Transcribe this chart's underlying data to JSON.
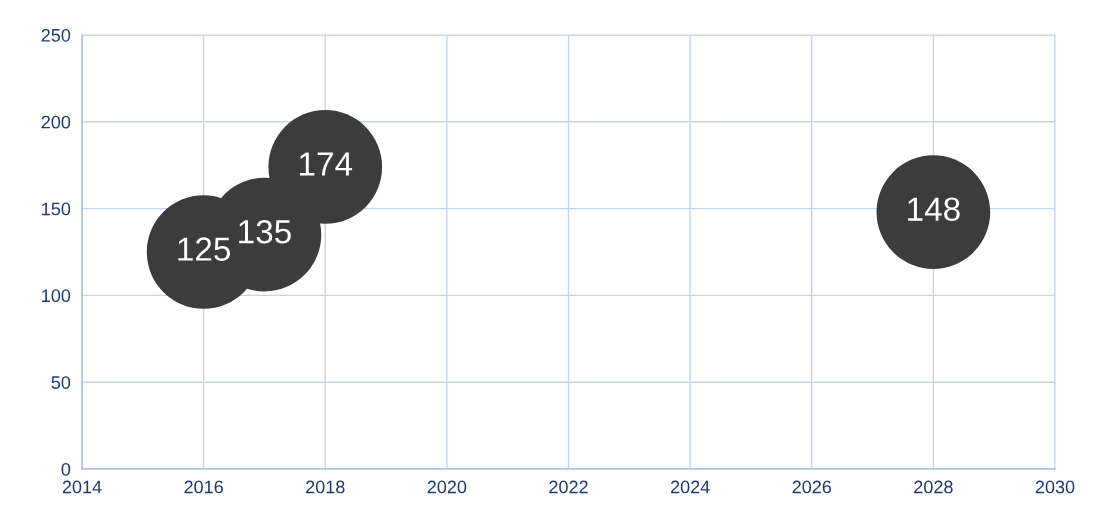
{
  "chart_data": {
    "type": "bubble",
    "x": [
      2016,
      2017,
      2018,
      2028
    ],
    "values": [
      125,
      135,
      174,
      148
    ],
    "sizes": [
      1,
      1,
      1,
      1
    ],
    "color": "#3c3c3c",
    "data_labels": true,
    "xlim": [
      2014,
      2030
    ],
    "xticks": [
      2014,
      2016,
      2018,
      2020,
      2022,
      2024,
      2026,
      2028,
      2030
    ],
    "ylim": [
      0,
      250
    ],
    "yticks": [
      0,
      50,
      100,
      150,
      200,
      250
    ],
    "grid": true
  }
}
